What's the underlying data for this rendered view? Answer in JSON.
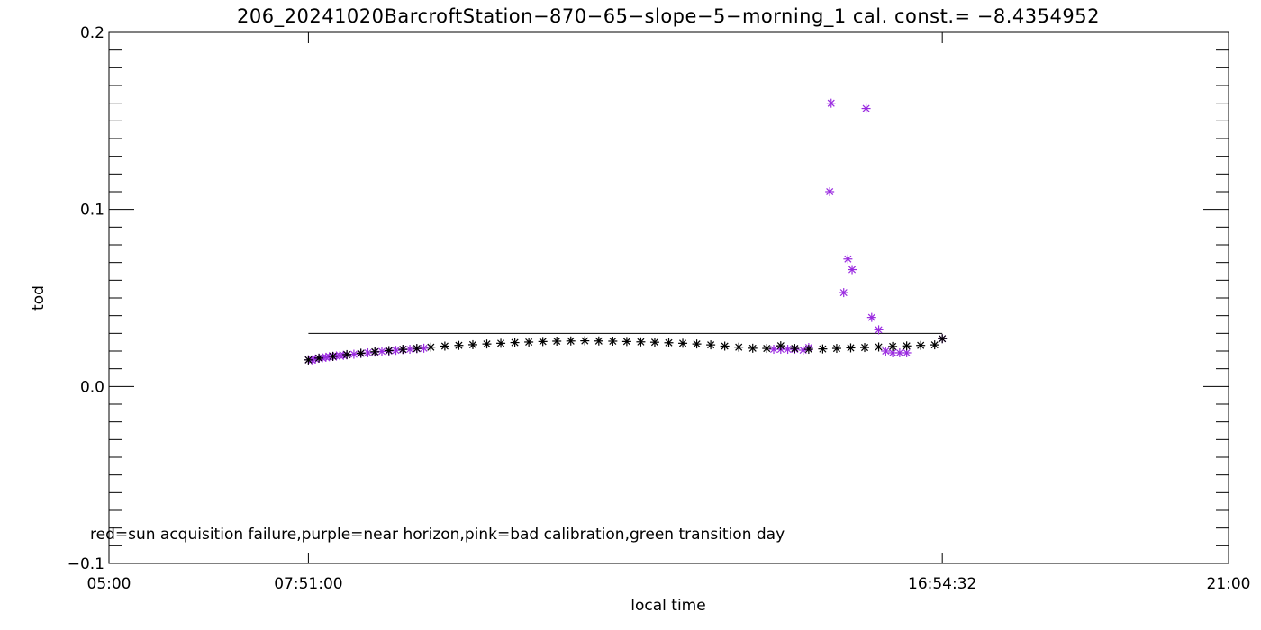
{
  "chart_data": {
    "type": "scatter",
    "title": "206_20241020BarcroftStation−870−65−slope−5−morning_1 cal. const.= −8.4354952",
    "xlabel": "local time",
    "ylabel": "tod",
    "x_unit": "hours (local time)",
    "xlim": [
      5,
      21
    ],
    "ylim": [
      -0.1,
      0.2
    ],
    "x_ticks": [
      {
        "value": 5,
        "label": "05:00"
      },
      {
        "value": 7.85,
        "label": "07:51:00"
      },
      {
        "value": 16.909,
        "label": "16:54:32"
      },
      {
        "value": 21,
        "label": "21:00"
      }
    ],
    "y_ticks": [
      {
        "value": -0.1,
        "label": "−0.1"
      },
      {
        "value": 0.0,
        "label": "0.0"
      },
      {
        "value": 0.1,
        "label": "0.1"
      },
      {
        "value": 0.2,
        "label": "0.2"
      }
    ],
    "reference_line": {
      "x_start": 7.85,
      "x_end": 16.909,
      "y": 0.03,
      "color": "#000000"
    },
    "legend_text": "red=sun acquisition failure,purple=near horizon,pink=bad calibration,green transition day",
    "colors": {
      "normal": "#000000",
      "near_horizon": "#9a2be0"
    },
    "series": [
      {
        "category": "near_horizon",
        "color": "#9a2be0",
        "x": [
          7.85,
          7.9,
          7.95,
          8.0,
          8.05,
          8.1,
          8.15,
          8.2,
          8.25,
          8.3,
          8.35,
          8.4,
          8.5,
          8.6,
          8.7,
          8.8,
          8.9,
          9.0,
          9.1,
          9.2,
          9.3,
          9.4,
          9.5,
          14.5,
          14.6,
          14.7,
          14.8,
          14.92,
          15.0,
          15.3,
          15.32,
          15.5,
          15.56,
          15.62,
          15.82,
          15.9,
          16.0,
          16.1,
          16.2,
          16.3,
          16.4,
          16.909
        ],
        "y": [
          0.015,
          0.015,
          0.0155,
          0.016,
          0.0162,
          0.0165,
          0.0168,
          0.017,
          0.0172,
          0.0174,
          0.0176,
          0.0178,
          0.0182,
          0.0186,
          0.019,
          0.0194,
          0.0198,
          0.02,
          0.0204,
          0.0208,
          0.021,
          0.0213,
          0.0216,
          0.021,
          0.021,
          0.021,
          0.021,
          0.0205,
          0.022,
          0.11,
          0.16,
          0.053,
          0.072,
          0.066,
          0.157,
          0.039,
          0.032,
          0.02,
          0.019,
          0.019,
          0.019,
          0.027
        ]
      },
      {
        "category": "normal",
        "color": "#000000",
        "x": [
          7.85,
          8.0,
          8.2,
          8.4,
          8.6,
          8.8,
          9.0,
          9.2,
          9.4,
          9.6,
          9.8,
          10.0,
          10.2,
          10.4,
          10.6,
          10.8,
          11.0,
          11.2,
          11.4,
          11.6,
          11.8,
          12.0,
          12.2,
          12.4,
          12.6,
          12.8,
          13.0,
          13.2,
          13.4,
          13.6,
          13.8,
          14.0,
          14.2,
          14.4,
          14.6,
          14.8,
          15.0,
          15.2,
          15.4,
          15.6,
          15.8,
          16.0,
          16.2,
          16.4,
          16.6,
          16.8,
          16.909
        ],
        "y": [
          0.015,
          0.016,
          0.017,
          0.018,
          0.0188,
          0.0196,
          0.0203,
          0.021,
          0.0215,
          0.0222,
          0.0228,
          0.0232,
          0.0236,
          0.024,
          0.0244,
          0.0248,
          0.0251,
          0.0254,
          0.0256,
          0.0257,
          0.0258,
          0.0257,
          0.0256,
          0.0254,
          0.0252,
          0.025,
          0.0247,
          0.0244,
          0.024,
          0.0235,
          0.0228,
          0.0222,
          0.0216,
          0.0215,
          0.023,
          0.0215,
          0.021,
          0.0212,
          0.0215,
          0.0218,
          0.022,
          0.0223,
          0.0226,
          0.0229,
          0.0232,
          0.0235,
          0.027
        ]
      }
    ]
  }
}
